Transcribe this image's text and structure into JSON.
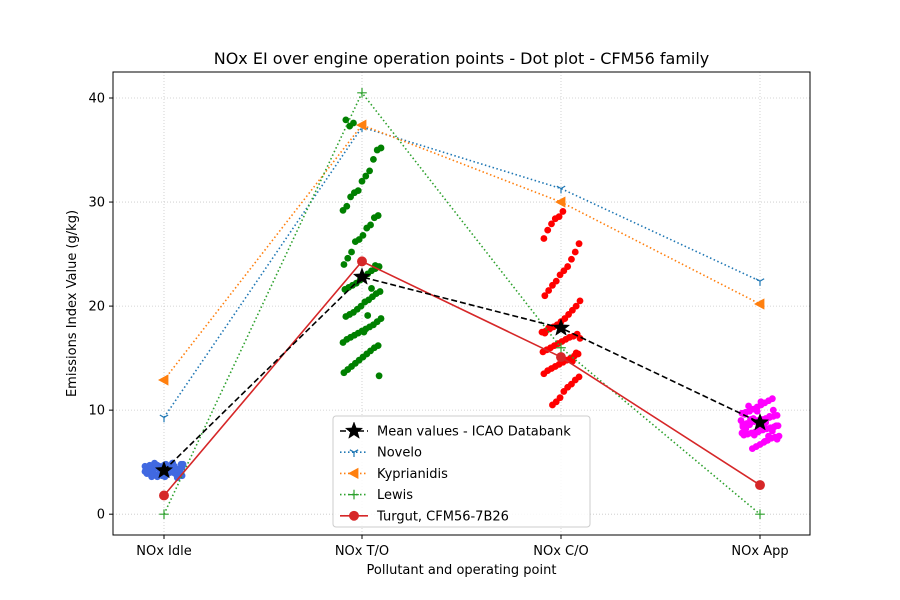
{
  "chart_data": {
    "type": "scatter",
    "title": "NOx EI over engine operation points - Dot plot - CFM56 family",
    "xlabel": "Pollutant and operating point",
    "ylabel": "Emissions Index Value (g/kg)",
    "categories": [
      "NOx Idle",
      "NOx T/O",
      "NOx C/O",
      "NOx App"
    ],
    "ylim": [
      -2,
      42.5
    ],
    "yticks": [
      0,
      10,
      20,
      30,
      40
    ],
    "grid": true,
    "legend_position": "lower-center",
    "dot_colors": [
      "#4169e1",
      "#008000",
      "#ff0000",
      "#ff00ff"
    ],
    "dots": [
      [
        4.6,
        4.2,
        3.8,
        4.9,
        4.4,
        3.6,
        4.1,
        4.7,
        3.9,
        4.5,
        4.3,
        4.8,
        3.5,
        4.0,
        4.6,
        4.2,
        3.7,
        4.4,
        4.9,
        4.1,
        3.9,
        4.5,
        4.3,
        4.0,
        4.7,
        3.8,
        4.2,
        4.6,
        4.4,
        3.6,
        4.1,
        4.8,
        4.3,
        3.9,
        4.5,
        4.0,
        4.7,
        4.2,
        3.7,
        4.4,
        4.6,
        4.1,
        3.8,
        4.3,
        4.9,
        4.5,
        4.0,
        4.2,
        3.6,
        4.4,
        4.7,
        4.1,
        3.9,
        4.3,
        4.6,
        4.0,
        4.8,
        4.2,
        3.8,
        4.5,
        4.4,
        4.1,
        3.7,
        4.3,
        4.6,
        4.2,
        3.9,
        4.0,
        4.5,
        4.8
      ],
      [
        37.6,
        37.3,
        37.9,
        35.2,
        35.0,
        34.1,
        33.0,
        32.5,
        32.0,
        31.1,
        30.9,
        30.5,
        29.6,
        29.2,
        28.7,
        28.5,
        27.8,
        27.5,
        26.8,
        26.4,
        26.2,
        25.2,
        24.6,
        24.0,
        23.8,
        23.6,
        23.4,
        23.1,
        22.8,
        22.5,
        22.2,
        22.0,
        21.8,
        21.6,
        21.4,
        21.2,
        20.9,
        20.6,
        20.4,
        20.0,
        19.7,
        19.4,
        19.2,
        19.0,
        18.8,
        18.5,
        18.2,
        18.0,
        17.8,
        17.6,
        17.4,
        17.2,
        17.0,
        16.8,
        16.5,
        16.2,
        16.0,
        15.7,
        15.4,
        15.1,
        14.8,
        14.5,
        14.2,
        13.9,
        13.6,
        13.3,
        23.9,
        21.7,
        19.1,
        17.5
      ],
      [
        29.1,
        28.6,
        28.4,
        27.9,
        27.3,
        26.5,
        26.0,
        25.2,
        24.5,
        23.8,
        23.4,
        23.0,
        22.4,
        22.0,
        21.5,
        21.0,
        20.5,
        20.0,
        19.6,
        19.2,
        18.8,
        18.5,
        18.2,
        18.0,
        17.8,
        17.6,
        17.5,
        17.3,
        17.1,
        17.0,
        16.8,
        16.6,
        16.4,
        16.2,
        16.0,
        15.8,
        15.6,
        15.4,
        15.2,
        15.0,
        14.8,
        14.6,
        14.4,
        14.2,
        14.0,
        13.8,
        13.5,
        13.2,
        12.9,
        12.5,
        12.2,
        11.8,
        11.2,
        10.8,
        10.5,
        17.9,
        17.4,
        16.9,
        15.5,
        14.7
      ],
      [
        11.1,
        10.9,
        10.7,
        10.5,
        10.3,
        10.1,
        9.9,
        9.8,
        9.7,
        9.5,
        9.4,
        9.3,
        9.2,
        9.1,
        9.0,
        8.9,
        8.8,
        8.7,
        8.6,
        8.5,
        8.4,
        8.3,
        8.2,
        8.1,
        8.0,
        7.9,
        7.8,
        7.7,
        7.6,
        7.5,
        7.4,
        7.3,
        7.1,
        6.9,
        6.7,
        6.5,
        6.3,
        10.4,
        9.6,
        9.0,
        8.5,
        8.0,
        7.5,
        7.0,
        10.8,
        9.9,
        9.2,
        8.6,
        8.2,
        7.8,
        7.2,
        10.0,
        9.4,
        8.8,
        8.3,
        7.9,
        7.6,
        9.1,
        8.7,
        8.4
      ]
    ],
    "series": [
      {
        "name": "Mean values - ICAO Databank",
        "values": [
          4.2,
          22.8,
          17.9,
          8.8
        ],
        "color": "#000000",
        "line": "dashed",
        "marker": "star"
      },
      {
        "name": "Novelo",
        "values": [
          9.3,
          37.2,
          31.3,
          22.4
        ],
        "color": "#1f77b4",
        "line": "dotted",
        "marker": "tri_down"
      },
      {
        "name": "Kyprianidis",
        "values": [
          12.9,
          37.4,
          30.0,
          20.2
        ],
        "color": "#ff7f0e",
        "line": "dotted",
        "marker": "triangle_left"
      },
      {
        "name": "Lewis",
        "values": [
          0.0,
          40.5,
          16.0,
          0.0
        ],
        "color": "#2ca02c",
        "line": "dotted",
        "marker": "plus"
      },
      {
        "name": "Turgut, CFM56-7B26",
        "values": [
          1.8,
          24.3,
          15.1,
          2.8
        ],
        "color": "#d62728",
        "line": "solid",
        "marker": "circle"
      }
    ]
  }
}
